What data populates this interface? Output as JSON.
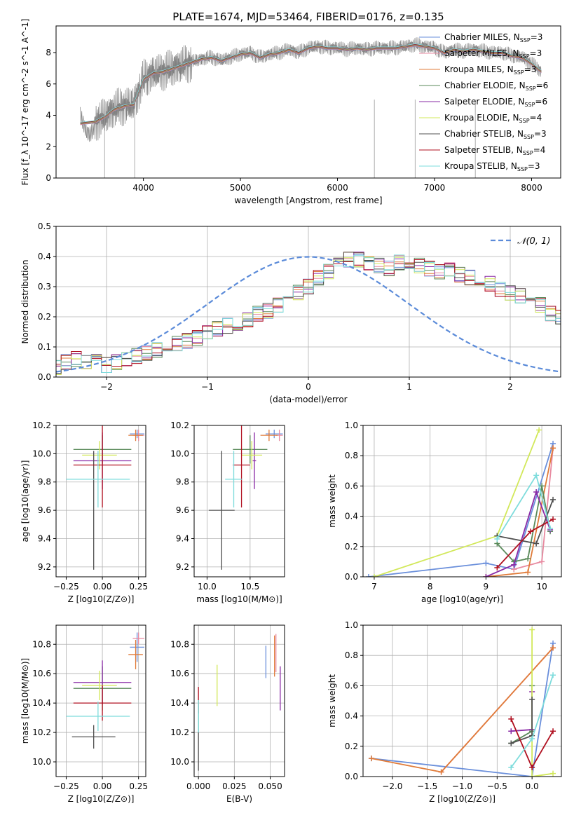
{
  "title": "PLATE=1674, MJD=53464, FIBERID=0176, z=0.135",
  "chart_data": [
    {
      "id": "spectrum",
      "type": "line",
      "xlabel": "wavelength [Angstrom, rest frame]",
      "ylabel": "Flux [f_λ 10^-17 erg cm^-2 s^-1 A^-1]",
      "xlim": [
        3100,
        8300
      ],
      "ylim": [
        0,
        9.7
      ],
      "xticks": [
        4000,
        5000,
        6000,
        7000,
        8000
      ],
      "yticks": [
        0,
        2,
        4,
        6,
        8
      ],
      "legend_position": "right",
      "data_spectrum": {
        "name": "data",
        "color": "#808080",
        "x": [
          3350,
          3500,
          3600,
          3700,
          3800,
          3900,
          4000,
          4100,
          4200,
          4300,
          4400,
          4500,
          4600,
          4700,
          4800,
          4900,
          5000,
          5100,
          5200,
          5300,
          5400,
          5500,
          5600,
          5700,
          5800,
          5900,
          6000,
          6100,
          6200,
          6300,
          6400,
          6500,
          6600,
          6700,
          6800,
          6900,
          7000,
          7100,
          7200,
          7300,
          7400,
          7500,
          7600,
          7700,
          7800,
          7900,
          8000,
          8100
        ],
        "y": [
          3.5,
          3.6,
          3.9,
          4.4,
          4.6,
          4.7,
          6.3,
          6.7,
          6.8,
          7.0,
          7.2,
          7.4,
          7.6,
          7.7,
          7.5,
          7.7,
          7.9,
          8.0,
          7.7,
          7.9,
          8.0,
          8.2,
          8.0,
          8.3,
          8.4,
          8.3,
          8.3,
          8.2,
          8.3,
          8.2,
          8.3,
          8.3,
          8.3,
          8.4,
          8.5,
          8.4,
          8.3,
          8.0,
          8.2,
          8.1,
          8.2,
          8.1,
          8.0,
          8.0,
          7.8,
          7.7,
          7.3,
          6.8
        ]
      },
      "series": [
        {
          "name": "Chabrier MILES, N_SSP=3",
          "color": "#6a8fdb"
        },
        {
          "name": "Salpeter MILES, N_SSP=3",
          "color": "#e88aa0"
        },
        {
          "name": "Kroupa MILES, N_SSP=3",
          "color": "#e07b39"
        },
        {
          "name": "Chabrier ELODIE, N_SSP=6",
          "color": "#5a8a5a"
        },
        {
          "name": "Salpeter ELODIE, N_SSP=6",
          "color": "#8a2ba6"
        },
        {
          "name": "Kroupa ELODIE, N_SSP=4",
          "color": "#d2e85a"
        },
        {
          "name": "Chabrier STELIB, N_SSP=3",
          "color": "#505050"
        },
        {
          "name": "Salpeter STELIB, N_SSP=4",
          "color": "#b01020"
        },
        {
          "name": "Kroupa STELIB, N_SSP=3",
          "color": "#7edcdc"
        }
      ]
    },
    {
      "id": "residuals",
      "type": "line",
      "xlabel": "(data-model)/error",
      "ylabel": "Normed distribution",
      "xlim": [
        -2.5,
        2.5
      ],
      "ylim": [
        0,
        0.5
      ],
      "xticks": [
        -2,
        -1,
        0,
        1,
        2
      ],
      "yticks": [
        0.0,
        0.1,
        0.2,
        0.3,
        0.4,
        0.5
      ],
      "grid": true,
      "legend_position": "top-right",
      "legend": "𝒩(0, 1)",
      "gaussian": {
        "mean": 0,
        "sigma": 1,
        "color": "#5b8bd9"
      },
      "bin_width": 0.1,
      "hist_base": [
        0.03,
        0.05,
        0.06,
        0.05,
        0.05,
        0.04,
        0.05,
        0.06,
        0.07,
        0.08,
        0.09,
        0.09,
        0.11,
        0.12,
        0.13,
        0.15,
        0.16,
        0.17,
        0.18,
        0.19,
        0.21,
        0.22,
        0.24,
        0.26,
        0.28,
        0.3,
        0.33,
        0.35,
        0.37,
        0.39,
        0.39,
        0.38,
        0.37,
        0.36,
        0.38,
        0.37,
        0.37,
        0.36,
        0.35,
        0.36,
        0.34,
        0.33,
        0.33,
        0.31,
        0.29,
        0.28,
        0.27,
        0.25,
        0.24,
        0.21,
        0.2,
        0.18,
        0.17,
        0.15,
        0.13,
        0.12,
        0.11,
        0.1,
        0.08,
        0.08,
        0.07,
        0.06,
        0.05,
        0.05,
        0.04,
        0.03,
        0.03
      ],
      "hist_start": -2.55
    },
    {
      "id": "age-vs-Z",
      "type": "scatter",
      "xlabel": "Z [log10(Z/Z⊙)]",
      "ylabel": "age  [log10(age/yr)]",
      "xlim": [
        -0.32,
        0.3
      ],
      "ylim": [
        9.13,
        10.2
      ],
      "xticks": [
        -0.25,
        0.0,
        0.25
      ],
      "xticklabels": [
        "−0.25",
        "0.00",
        "0.25"
      ],
      "yticks": [
        9.2,
        9.4,
        9.6,
        9.8,
        10.0,
        10.2
      ],
      "grid": true,
      "points": [
        {
          "series": "Chabrier MILES",
          "x": 0.24,
          "y": 10.14,
          "xerr": 0.05,
          "yerr": 0.03
        },
        {
          "series": "Salpeter MILES",
          "x": 0.25,
          "y": 10.13,
          "xerr": 0.04,
          "yerr": 0.04
        },
        {
          "series": "Kroupa MILES",
          "x": 0.23,
          "y": 10.13,
          "xerr": 0.05,
          "yerr": 0.04
        },
        {
          "series": "Chabrier ELODIE",
          "x": 0.0,
          "y": 10.03,
          "xerr": 0.2,
          "yerr": 0.1
        },
        {
          "series": "Salpeter ELODIE",
          "x": 0.0,
          "y": 9.95,
          "xerr": 0.2,
          "yerr": 0.2
        },
        {
          "series": "Kroupa ELODIE",
          "x": -0.02,
          "y": 9.99,
          "xerr": 0.12,
          "yerr": 0.1
        },
        {
          "series": "Chabrier STELIB",
          "x": -0.06,
          "y": 9.6,
          "xerr": 0.0,
          "yerr": 0.42
        },
        {
          "series": "Salpeter STELIB",
          "x": 0.0,
          "y": 9.92,
          "xerr": 0.2,
          "yerr": 0.3
        },
        {
          "series": "Kroupa STELIB",
          "x": -0.03,
          "y": 9.82,
          "xerr": 0.22,
          "yerr": 0.2
        }
      ]
    },
    {
      "id": "age-vs-mass",
      "type": "scatter",
      "xlabel": "mass [log10(M/M⊙)]",
      "xlim": [
        9.85,
        10.9
      ],
      "ylim": [
        9.13,
        10.2
      ],
      "xticks": [
        10.0,
        10.5
      ],
      "xticklabels": [
        "10.0",
        "10.5"
      ],
      "yticks": [
        9.2,
        9.4,
        9.6,
        9.8,
        10.0,
        10.2
      ],
      "grid": true,
      "points": [
        {
          "series": "Chabrier MILES",
          "x": 10.78,
          "y": 10.14,
          "xerr": 0.1,
          "yerr": 0.03
        },
        {
          "series": "Salpeter MILES",
          "x": 10.84,
          "y": 10.13,
          "xerr": 0.04,
          "yerr": 0.04
        },
        {
          "series": "Kroupa MILES",
          "x": 10.72,
          "y": 10.13,
          "xerr": 0.1,
          "yerr": 0.04
        },
        {
          "series": "Chabrier ELODIE",
          "x": 10.5,
          "y": 10.03,
          "xerr": 0.2,
          "yerr": 0.1
        },
        {
          "series": "Salpeter ELODIE",
          "x": 10.55,
          "y": 9.95,
          "xerr": 0.02,
          "yerr": 0.2
        },
        {
          "series": "Kroupa ELODIE",
          "x": 10.52,
          "y": 9.99,
          "xerr": 0.12,
          "yerr": 0.1
        },
        {
          "series": "Chabrier STELIB",
          "x": 10.17,
          "y": 9.6,
          "xerr": 0.15,
          "yerr": 0.42
        },
        {
          "series": "Salpeter STELIB",
          "x": 10.4,
          "y": 9.92,
          "xerr": 0.1,
          "yerr": 0.3
        },
        {
          "series": "Kroupa STELIB",
          "x": 10.31,
          "y": 9.82,
          "xerr": 0.1,
          "yerr": 0.2
        }
      ]
    },
    {
      "id": "mass-weight-vs-age",
      "type": "line",
      "xlabel": "age  [log10(age/yr)]",
      "ylabel": "mass weight",
      "xlim": [
        6.8,
        10.35
      ],
      "ylim": [
        0,
        1.0
      ],
      "xticks": [
        7,
        8,
        9,
        10
      ],
      "yticks": [
        0.0,
        0.2,
        0.4,
        0.6,
        0.8,
        1.0
      ],
      "grid": true,
      "lines": [
        {
          "series": "Chabrier MILES",
          "x": [
            6.9,
            9.0,
            9.5,
            10.2
          ],
          "y": [
            0.0,
            0.09,
            0.05,
            0.88
          ]
        },
        {
          "series": "Salpeter MILES",
          "x": [
            9.5,
            10.0,
            10.2
          ],
          "y": [
            0.05,
            0.1,
            0.85
          ]
        },
        {
          "series": "Kroupa MILES",
          "x": [
            9.0,
            9.75,
            10.2
          ],
          "y": [
            0.0,
            0.03,
            0.85
          ]
        },
        {
          "series": "Chabrier ELODIE",
          "x": [
            9.2,
            9.5,
            9.75,
            10.0,
            10.15
          ],
          "y": [
            0.22,
            0.1,
            0.12,
            0.6,
            0.3
          ]
        },
        {
          "series": "Salpeter ELODIE",
          "x": [
            9.0,
            9.5,
            9.9,
            10.15
          ],
          "y": [
            0.0,
            0.08,
            0.56,
            0.31
          ]
        },
        {
          "series": "Kroupa ELODIE",
          "x": [
            7.0,
            9.2,
            9.95
          ],
          "y": [
            0.0,
            0.27,
            0.97
          ]
        },
        {
          "series": "Chabrier STELIB",
          "x": [
            9.2,
            9.9,
            10.2
          ],
          "y": [
            0.27,
            0.22,
            0.51
          ]
        },
        {
          "series": "Salpeter STELIB",
          "x": [
            9.2,
            9.8,
            10.2
          ],
          "y": [
            0.06,
            0.3,
            0.38
          ]
        },
        {
          "series": "Kroupa STELIB",
          "x": [
            9.2,
            9.9,
            10.15
          ],
          "y": [
            0.25,
            0.67,
            0.32
          ]
        }
      ]
    },
    {
      "id": "mass-vs-Z",
      "type": "scatter",
      "xlabel": "Z [log10(Z/Z⊙)]",
      "ylabel": "mass [log10(M/M⊙)]",
      "xlim": [
        -0.32,
        0.3
      ],
      "ylim": [
        9.9,
        10.93
      ],
      "xticks": [
        -0.25,
        0.0,
        0.25
      ],
      "xticklabels": [
        "−0.25",
        "0.00",
        "0.25"
      ],
      "yticks": [
        10.0,
        10.2,
        10.4,
        10.6,
        10.8
      ],
      "grid": true,
      "points": [
        {
          "series": "Chabrier MILES",
          "x": 0.24,
          "y": 10.78,
          "xerr": 0.05,
          "yerr": 0.1
        },
        {
          "series": "Salpeter MILES",
          "x": 0.25,
          "y": 10.84,
          "xerr": 0.04,
          "yerr": 0.04
        },
        {
          "series": "Kroupa MILES",
          "x": 0.23,
          "y": 10.73,
          "xerr": 0.05,
          "yerr": 0.1
        },
        {
          "series": "Chabrier ELODIE",
          "x": 0.0,
          "y": 10.5,
          "xerr": 0.2,
          "yerr": 0.15
        },
        {
          "series": "Salpeter ELODIE",
          "x": 0.0,
          "y": 10.54,
          "xerr": 0.2,
          "yerr": 0.15
        },
        {
          "series": "Kroupa ELODIE",
          "x": -0.02,
          "y": 10.52,
          "xerr": 0.12,
          "yerr": 0.1
        },
        {
          "series": "Chabrier STELIB",
          "x": -0.06,
          "y": 10.17,
          "xerr": 0.15,
          "yerr": 0.08
        },
        {
          "series": "Salpeter STELIB",
          "x": 0.0,
          "y": 10.4,
          "xerr": 0.2,
          "yerr": 0.12
        },
        {
          "series": "Kroupa STELIB",
          "x": -0.03,
          "y": 10.31,
          "xerr": 0.22,
          "yerr": 0.1
        }
      ]
    },
    {
      "id": "mass-vs-EBV",
      "type": "scatter",
      "xlabel": "E(B-V)",
      "xlim": [
        -0.003,
        0.06
      ],
      "ylim": [
        9.9,
        10.93
      ],
      "xticks": [
        0.0,
        0.025,
        0.05
      ],
      "xticklabels": [
        "0.000",
        "0.025",
        "0.050"
      ],
      "yticks": [
        10.0,
        10.2,
        10.4,
        10.6,
        10.8
      ],
      "grid": true,
      "points": [
        {
          "series": "Chabrier MILES",
          "x": 0.047,
          "y": 10.68,
          "yerr": 0.11
        },
        {
          "series": "Salpeter MILES",
          "x": 0.054,
          "y": 10.74,
          "yerr": 0.13
        },
        {
          "series": "Kroupa MILES",
          "x": 0.053,
          "y": 10.72,
          "yerr": 0.14
        },
        {
          "series": "Chabrier ELODIE",
          "x": 0.0,
          "y": 10.32,
          "yerr": 0.1
        },
        {
          "series": "Salpeter ELODIE",
          "x": 0.057,
          "y": 10.5,
          "yerr": 0.15
        },
        {
          "series": "Kroupa ELODIE",
          "x": 0.013,
          "y": 10.52,
          "yerr": 0.14
        },
        {
          "series": "Chabrier STELIB",
          "x": 0.0,
          "y": 10.08,
          "yerr": 0.14
        },
        {
          "series": "Salpeter STELIB",
          "x": 0.0,
          "y": 10.42,
          "yerr": 0.09
        },
        {
          "series": "Kroupa STELIB",
          "x": 0.0,
          "y": 10.31,
          "yerr": 0.11
        }
      ]
    },
    {
      "id": "mass-weight-vs-Z",
      "type": "line",
      "xlabel": "Z [log10(Z/Z⊙)]",
      "ylabel": "mass weight",
      "xlim": [
        -2.42,
        0.42
      ],
      "ylim": [
        0,
        1.0
      ],
      "xticks": [
        -2.0,
        -1.5,
        -1.0,
        -0.5,
        0.0
      ],
      "xticklabels": [
        "−2.0",
        "−1.5",
        "−1.0",
        "−0.5",
        "0.0"
      ],
      "yticks": [
        0.0,
        0.2,
        0.4,
        0.6,
        0.8,
        1.0
      ],
      "grid": true,
      "lines": [
        {
          "series": "Chabrier MILES",
          "x": [
            -2.3,
            0.0,
            0.3
          ],
          "y": [
            0.12,
            0.0,
            0.88
          ]
        },
        {
          "series": "Salpeter MILES",
          "x": [
            -1.3,
            0.3
          ],
          "y": [
            0.03,
            0.85
          ]
        },
        {
          "series": "Kroupa MILES",
          "x": [
            -2.3,
            -1.3,
            0.3
          ],
          "y": [
            0.12,
            0.03,
            0.85
          ]
        },
        {
          "series": "Chabrier ELODIE",
          "x": [
            -0.3,
            0.0,
            0.0
          ],
          "y": [
            0.22,
            0.3,
            0.6
          ]
        },
        {
          "series": "Salpeter ELODIE",
          "x": [
            -0.3,
            0.0,
            0.0
          ],
          "y": [
            0.3,
            0.31,
            0.56
          ]
        },
        {
          "series": "Kroupa ELODIE",
          "x": [
            0.0,
            0.0,
            0.3
          ],
          "y": [
            0.97,
            0.0,
            0.02
          ]
        },
        {
          "series": "Chabrier STELIB",
          "x": [
            -0.3,
            0.0,
            0.0
          ],
          "y": [
            0.22,
            0.27,
            0.51
          ]
        },
        {
          "series": "Salpeter STELIB",
          "x": [
            -0.3,
            0.0,
            0.3
          ],
          "y": [
            0.38,
            0.06,
            0.3
          ]
        },
        {
          "series": "Kroupa STELIB",
          "x": [
            -0.3,
            0.0,
            0.3
          ],
          "y": [
            0.06,
            0.25,
            0.67
          ]
        }
      ]
    }
  ]
}
